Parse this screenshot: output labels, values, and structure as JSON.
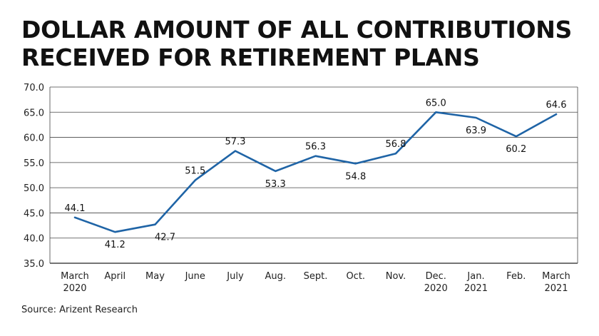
{
  "chart_data": {
    "type": "line",
    "title": "DOLLAR AMOUNT OF ALL CONTRIBUTIONS RECEIVED FOR RETIREMENT PLANS",
    "categories": [
      [
        "March",
        "2020"
      ],
      [
        "April"
      ],
      [
        "May"
      ],
      [
        "June"
      ],
      [
        "July"
      ],
      [
        "Aug."
      ],
      [
        "Sept."
      ],
      [
        "Oct."
      ],
      [
        "Nov."
      ],
      [
        "Dec.",
        "2020"
      ],
      [
        "Jan.",
        "2021"
      ],
      [
        "Feb."
      ],
      [
        "March",
        "2021"
      ]
    ],
    "series": [
      {
        "values": [
          44.1,
          41.2,
          42.7,
          51.5,
          57.3,
          53.3,
          56.3,
          54.8,
          56.8,
          65.0,
          63.9,
          60.2,
          64.6
        ],
        "data_labels": [
          "44.1",
          "41.2",
          "42.7",
          "51.5",
          "57.3",
          "53.3",
          "56.3",
          "54.8",
          "56.8",
          "65.0",
          "63.9",
          "60.2",
          "64.6"
        ],
        "color": "#1f64a6"
      }
    ],
    "ylim": [
      35.0,
      70.0
    ],
    "y_ticks": [
      "35.0",
      "40.0",
      "45.0",
      "50.0",
      "55.0",
      "60.0",
      "65.0",
      "70.0"
    ],
    "xlabel": "",
    "ylabel": "",
    "grid": "horizontal",
    "legend": "none"
  },
  "source": "Source: Arizent Research"
}
